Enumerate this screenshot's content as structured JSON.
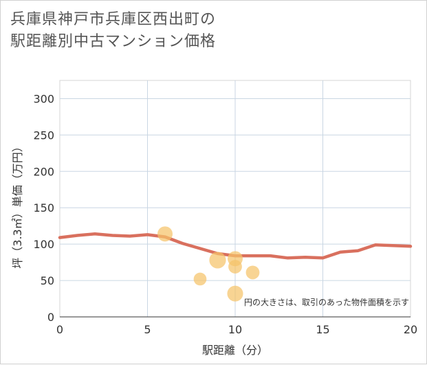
{
  "title_lines": [
    "兵庫県神戸市兵庫区西出町の",
    "駅距離別中古マンション価格"
  ],
  "chart_data": {
    "type": "scatter",
    "xlabel": "駅距離（分）",
    "ylabel": "坪（3.3㎡）単価（万円）",
    "xlim": [
      0,
      20
    ],
    "ylim": [
      0,
      325
    ],
    "x_ticks": [
      0,
      5,
      10,
      15,
      20
    ],
    "y_ticks": [
      0,
      50,
      100,
      150,
      200,
      250,
      300
    ],
    "grid": true,
    "note": "円の大きさは、取引のあった物件面積を示す",
    "colors": {
      "trend_line": "#d9705e",
      "bubble": "#f5c46a"
    },
    "series": [
      {
        "type": "line",
        "x": [
          0,
          1,
          2,
          3,
          4,
          5,
          6,
          7,
          8,
          9,
          10,
          11,
          12,
          13,
          14,
          15,
          16,
          17,
          18,
          19,
          20
        ],
        "y": [
          109,
          112,
          114,
          112,
          111,
          113,
          110,
          101,
          94,
          87,
          84,
          84,
          84,
          81,
          82,
          81,
          89,
          91,
          99,
          98,
          97
        ]
      },
      {
        "type": "scatter",
        "points": [
          {
            "x": 6,
            "y": 114,
            "size": 1.0
          },
          {
            "x": 8,
            "y": 52,
            "size": 0.85
          },
          {
            "x": 9,
            "y": 78,
            "size": 1.1
          },
          {
            "x": 10,
            "y": 80,
            "size": 1.0
          },
          {
            "x": 10,
            "y": 69,
            "size": 0.9
          },
          {
            "x": 10,
            "y": 32,
            "size": 1.05
          },
          {
            "x": 11,
            "y": 61,
            "size": 0.9
          }
        ]
      }
    ]
  }
}
